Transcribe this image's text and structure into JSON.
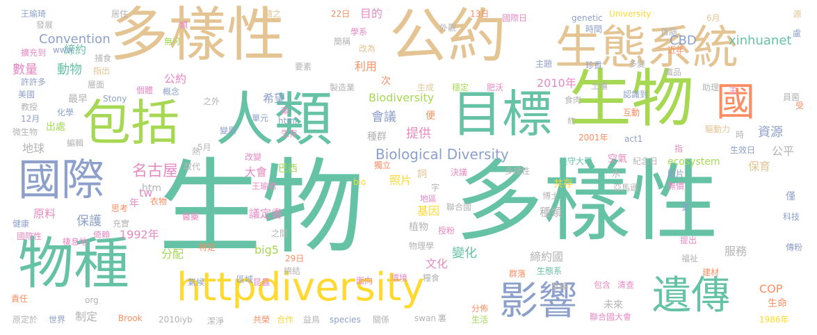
{
  "palette": {
    "green": "#66c2a5",
    "sand": "#e5c494",
    "lime": "#a6d854",
    "yellow": "#ffd92f",
    "periwinkle": "#8da0cb",
    "salmon": "#fc8d62",
    "pink": "#e78ac3",
    "gray": "#b3b3b3"
  },
  "words": [
    "多樣性",
    "公約",
    "生態系統",
    "生物",
    "包括",
    "人類",
    "目標",
    "國",
    "國際",
    "物種",
    "生物",
    "多樣性",
    "httpdiversity",
    "影響",
    "遺傳",
    "名古屋",
    "Biological Diversity",
    "Convention",
    "CBD",
    "xinhuanet",
    "數量",
    "動物",
    "締約",
    "公約",
    "2010年",
    "Biodiversity",
    "會議",
    "提供",
    "種群",
    "希望",
    "地球",
    "資源",
    "公平",
    "保育",
    "tw",
    "保護",
    "1992年",
    "原料",
    "大會",
    "巴西",
    "議定書",
    "變化",
    "締約國",
    "種類",
    "服務",
    "COP",
    "生命",
    "未來",
    "2001年",
    "共存",
    "照片",
    "基因",
    "植物",
    "物理學",
    "文化",
    "big5",
    "分配",
    "htm",
    "年",
    "次",
    "利用",
    "便",
    "bio",
    "決議",
    "多樣性",
    "義守大學",
    "空氣",
    "ecosystem",
    "王瑜琦",
    "發展",
    "www",
    "擴充到",
    "許許多",
    "美國",
    "教授",
    "12月",
    "微生物",
    "化學",
    "最早",
    "出處",
    "健康",
    "國際性",
    "棲息地",
    "倚賴",
    "充實",
    "思考",
    "衣物",
    "醫藥",
    "特定",
    "分佈",
    "生活",
    "聯合國大會",
    "1986年",
    "傳粉",
    "科技",
    "僅",
    "圖片",
    "無價",
    "更",
    "聯合國",
    "授粉",
    "群落",
    "生態系",
    "意義",
    "包含",
    "清查",
    "建材",
    "福祉",
    "提出",
    "亞馬遜",
    "genetic",
    "University",
    "時間",
    "首腦",
    "6月",
    "源",
    "盧",
    "國際日",
    "13日",
    "主題",
    "珍貴",
    "近年",
    "多變",
    "織品",
    "助理",
    "員菌",
    "受",
    "主",
    "土壤",
    "認識到",
    "互動",
    "驅動力",
    "act1",
    "時",
    "生效日",
    "紀念日",
    "水",
    "博士",
    "地區",
    "獨立",
    "詞",
    "字",
    "html",
    "兩",
    "單元",
    "生存",
    "變異",
    "熱",
    "取代",
    "5月",
    "編輯",
    "改變",
    "王瑜君",
    "之間",
    "29日",
    "締結",
    "昆蟲",
    "區域",
    "環境",
    "糧食",
    "面向",
    "關係",
    "species",
    "益鳥",
    "合作",
    "共榮",
    "潔淨",
    "2010iyb",
    "Brook",
    "swan",
    "裏",
    "世界",
    "制定",
    "原定於",
    "org",
    "責任",
    "氣候",
    "Stony",
    "個體",
    "概念",
    "層面",
    "捕食",
    "指出",
    "居住",
    "類",
    "無可",
    "隨之",
    "學系",
    "目的",
    "22日",
    "簡稱",
    "改為",
    "外觀",
    "要素",
    "製造業",
    "生成",
    "穩定",
    "肥沃",
    "食肉",
    "約",
    "指",
    "之外",
    "樹木"
  ]
}
